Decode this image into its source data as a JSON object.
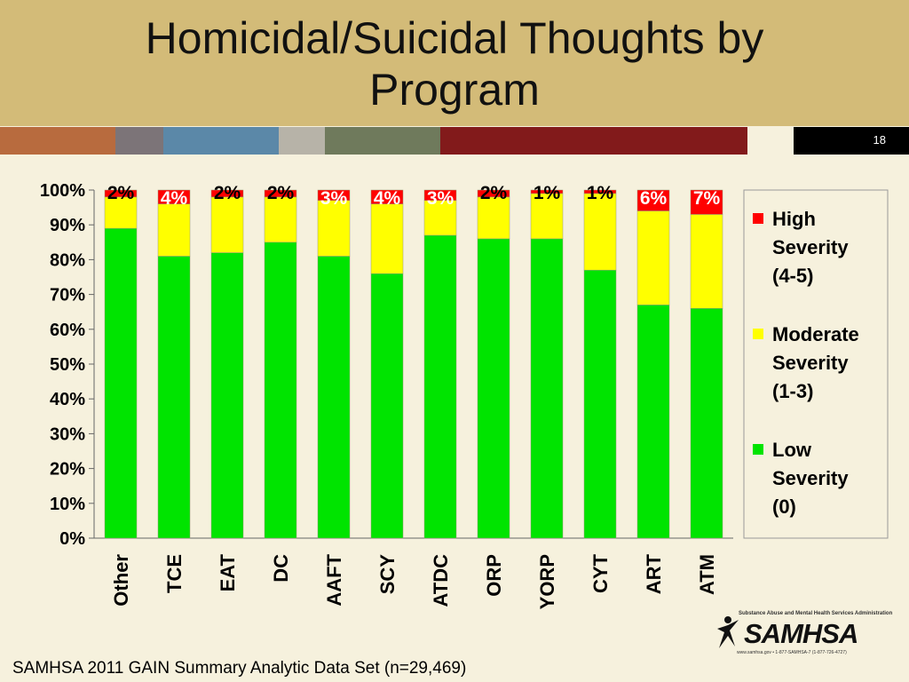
{
  "slide": {
    "title_line1": "Homicidal/Suicidal Thoughts by",
    "title_line2": "Program",
    "number": "18",
    "footer": "SAMHSA 2011 GAIN Summary Analytic Data Set (n=29,469)",
    "logo": {
      "word": "SAMHSA",
      "subtitle": "Substance Abuse and Mental Health Services Administration",
      "contact": "www.samhsa.gov • 1-877-SAMHSA-7 (1-877-726-4727)"
    }
  },
  "chart_data": {
    "type": "bar",
    "stacked": true,
    "categories": [
      "Other",
      "TCE",
      "EAT",
      "DC",
      "AAFT",
      "SCY",
      "ATDC",
      "ORP",
      "YORP",
      "CYT",
      "ART",
      "ATM"
    ],
    "series": [
      {
        "name": "Low Severity (0)",
        "color": "#00e400",
        "values": [
          89,
          81,
          82,
          85,
          81,
          76,
          87,
          86,
          86,
          77,
          67,
          66
        ]
      },
      {
        "name": "Moderate Severity (1-3)",
        "color": "#ffff00",
        "values": [
          9,
          15,
          16,
          13,
          16,
          20,
          10,
          12,
          13,
          22,
          27,
          27
        ]
      },
      {
        "name": "High Severity (4-5)",
        "color": "#ff0000",
        "values": [
          2,
          4,
          2,
          2,
          3,
          4,
          3,
          2,
          1,
          1,
          6,
          7
        ]
      }
    ],
    "high_labels": [
      "2%",
      "4%",
      "2%",
      "2%",
      "3%",
      "4%",
      "3%",
      "2%",
      "1%",
      "1%",
      "6%",
      "7%"
    ],
    "yticks": [
      "0%",
      "10%",
      "20%",
      "30%",
      "40%",
      "50%",
      "60%",
      "70%",
      "80%",
      "90%",
      "100%"
    ],
    "ylim": [
      0,
      100
    ],
    "legend": [
      {
        "lines": [
          "High",
          "Severity",
          "(4-5)"
        ],
        "color": "#ff0000"
      },
      {
        "lines": [
          "Moderate",
          "Severity",
          "(1-3)"
        ],
        "color": "#ffff00"
      },
      {
        "lines": [
          "Low",
          "Severity",
          "(0)"
        ],
        "color": "#00e400"
      }
    ],
    "legend_position": "right",
    "grid": false
  }
}
